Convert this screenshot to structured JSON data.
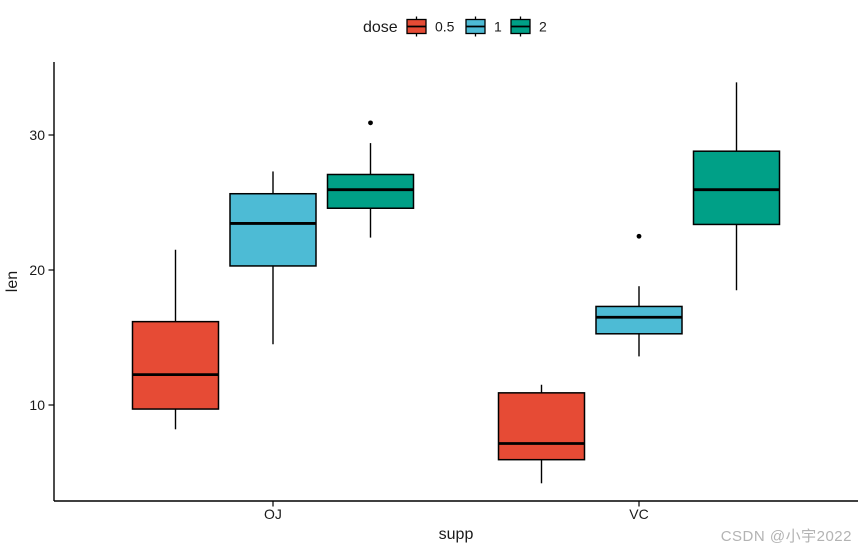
{
  "chart_data": {
    "type": "boxplot",
    "title": "",
    "xlabel": "supp",
    "ylabel": "len",
    "categories": [
      "OJ",
      "VC"
    ],
    "y_axis": {
      "ticks": [
        10,
        20,
        30
      ],
      "range": [
        2.7,
        35.4
      ],
      "grid": false
    },
    "legend": {
      "title": "dose",
      "position": "top",
      "entries": [
        {
          "label": "0.5",
          "color": "#E64B35"
        },
        {
          "label": "1",
          "color": "#4DBBD5"
        },
        {
          "label": "2",
          "color": "#00A087"
        }
      ]
    },
    "series": [
      {
        "supp": "OJ",
        "dose": "0.5",
        "min": 8.2,
        "q1": 9.7,
        "median": 12.25,
        "q3": 16.175,
        "max": 21.5,
        "outliers": []
      },
      {
        "supp": "OJ",
        "dose": "1",
        "min": 14.5,
        "q1": 20.3,
        "median": 23.45,
        "q3": 25.65,
        "max": 27.3,
        "outliers": []
      },
      {
        "supp": "OJ",
        "dose": "2",
        "min": 22.4,
        "q1": 24.575,
        "median": 25.95,
        "q3": 27.075,
        "max": 29.4,
        "outliers": [
          30.9
        ]
      },
      {
        "supp": "VC",
        "dose": "0.5",
        "min": 4.2,
        "q1": 5.95,
        "median": 7.15,
        "q3": 10.9,
        "max": 11.5,
        "outliers": []
      },
      {
        "supp": "VC",
        "dose": "1",
        "min": 13.6,
        "q1": 15.275,
        "median": 16.5,
        "q3": 17.3,
        "max": 18.8,
        "outliers": [
          22.5
        ]
      },
      {
        "supp": "VC",
        "dose": "2",
        "min": 18.5,
        "q1": 23.375,
        "median": 25.95,
        "q3": 28.8,
        "max": 33.9,
        "outliers": []
      }
    ],
    "colors": {
      "axis_line": "#000000",
      "text": "#1a1a1a",
      "outlier": "#000000",
      "watermark": "#b3b3b3"
    },
    "watermark": "CSDN @小宇2022"
  }
}
